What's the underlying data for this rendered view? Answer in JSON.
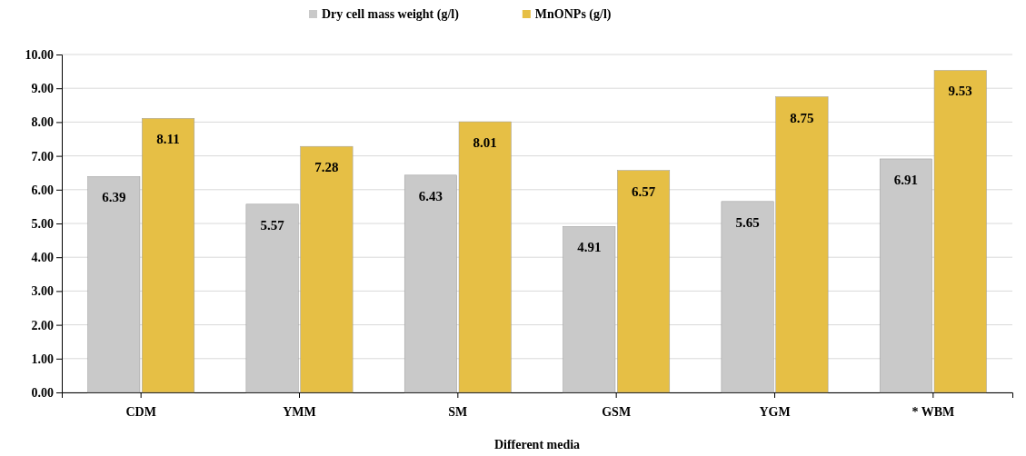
{
  "chart_data": {
    "type": "bar",
    "xlabel": "Different media",
    "categories": [
      "CDM",
      "YMM",
      "SM",
      "GSM",
      "YGM",
      "* WBM"
    ],
    "series": [
      {
        "name": "Dry cell mass weight (g/l)",
        "color": "#c9c9c9",
        "values": [
          6.39,
          5.57,
          6.43,
          4.91,
          5.65,
          6.91
        ]
      },
      {
        "name": "MnONPs (g/l)",
        "color": "#e6bf45",
        "values": [
          8.11,
          7.28,
          8.01,
          6.57,
          8.75,
          9.53
        ]
      }
    ],
    "ylim": [
      0,
      10
    ],
    "yticks": [
      {
        "value": 0,
        "label": "0.00"
      },
      {
        "value": 1,
        "label": "1.00"
      },
      {
        "value": 2,
        "label": "2.00"
      },
      {
        "value": 3,
        "label": "3.00"
      },
      {
        "value": 4,
        "label": "4.00"
      },
      {
        "value": 5,
        "label": "5.00"
      },
      {
        "value": 6,
        "label": "6.00"
      },
      {
        "value": 7,
        "label": "7.00"
      },
      {
        "value": 8,
        "label": "8.00"
      },
      {
        "value": 9,
        "label": "9.00"
      },
      {
        "value": 10,
        "label": "10.00"
      }
    ],
    "grid": "y",
    "legend": "top",
    "data_labels": true
  }
}
